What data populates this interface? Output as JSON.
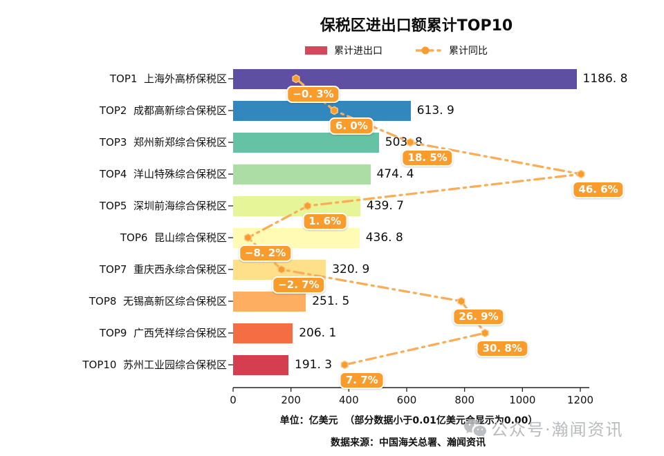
{
  "header": {
    "title": "保税区进出口额累计TOP10"
  },
  "legend": {
    "items": [
      {
        "label": "累计进出口",
        "swatch": "bar",
        "color": "#d4485a"
      },
      {
        "label": "累计同比",
        "swatch": "line-dot",
        "color": "#f99c2c"
      }
    ]
  },
  "chart_data": {
    "type": "bar",
    "orientation": "horizontal",
    "title": "保税区进出口额累计TOP10",
    "unit": "亿美元",
    "legend_position": "top",
    "categories": [
      "TOP1  上海外高桥保税区",
      "TOP2  成都高新综合保税区",
      "TOP3  郑州新郑综合保税区",
      "TOP4  洋山特殊综合保税区",
      "TOP5  深圳前海综合保税区",
      "TOP6  昆山综合保税区",
      "TOP7  重庆西永综合保税区",
      "TOP8  无锡高新区综合保税区",
      "TOP9  广西凭祥综合保税区",
      "TOP10  苏州工业园综合保税区"
    ],
    "series": [
      {
        "name": "累计进出口",
        "type": "bar",
        "values": [
          1186.8,
          613.9,
          503.8,
          474.4,
          439.7,
          436.8,
          320.9,
          251.5,
          206.1,
          191.3
        ],
        "display": [
          "1186. 8",
          "613. 9",
          "503. 8",
          "474. 4",
          "439. 7",
          "436. 8",
          "320. 9",
          "251. 5",
          "206. 1",
          "191. 3"
        ]
      },
      {
        "name": "累计同比",
        "type": "line",
        "unit": "%",
        "values": [
          -0.3,
          6.0,
          18.5,
          46.6,
          1.6,
          -8.2,
          -2.7,
          26.9,
          30.8,
          7.7
        ],
        "display": [
          "−0. 3%",
          "6. 0%",
          "18. 5%",
          "46. 6%",
          "1. 6%",
          "−8. 2%",
          "−2. 7%",
          "26. 9%",
          "30. 8%",
          "7. 7%"
        ]
      }
    ],
    "x_axis": {
      "ticks": [
        0,
        200,
        400,
        600,
        800,
        1000,
        1200
      ],
      "tick_labels": [
        "0",
        "200",
        "400",
        "600",
        "800",
        "1000",
        "1200"
      ],
      "range": [
        0,
        1232
      ]
    },
    "bar_colors": [
      "#5e4fa2",
      "#3288bd",
      "#66c2a5",
      "#abdda4",
      "#e6f598",
      "#fffbb5",
      "#fee08b",
      "#fdae61",
      "#f46d43",
      "#d53e4f"
    ],
    "line_color": "#fbad55",
    "marker_color": "#f79d2b",
    "badge_color": "#f99c2c",
    "grid": false
  },
  "footer": {
    "unit_note": "单位：亿美元  （部分数据小于0.01亿美元会显示为0.00）",
    "source": "数据来源：中国海关总署、瀚闻资讯"
  },
  "watermark": {
    "icon": "wechat-icon",
    "text": "公众号·瀚闻资讯"
  }
}
